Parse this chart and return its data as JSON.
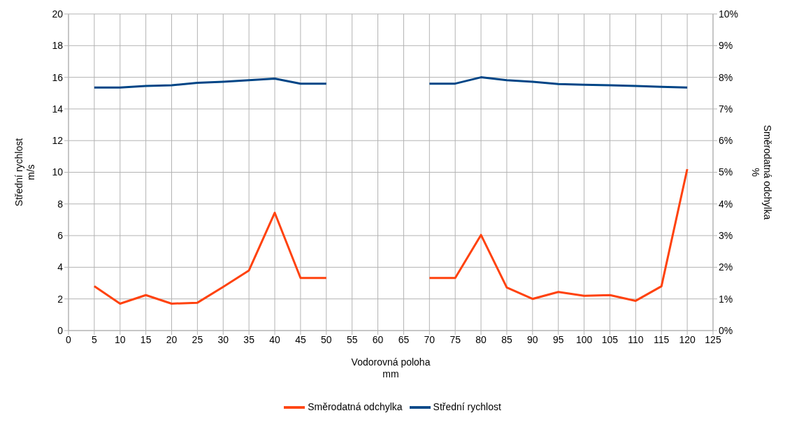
{
  "chart_data": {
    "type": "line",
    "xlabel": "Vodorovná poloha\nmm",
    "ylabel": "Střední rychlost\nm/s",
    "y2label": "Směrodatná odchylka\n%",
    "x": [
      5,
      10,
      15,
      20,
      25,
      30,
      35,
      40,
      45,
      50,
      55,
      60,
      65,
      70,
      75,
      80,
      85,
      90,
      95,
      100,
      105,
      110,
      115,
      120
    ],
    "series": [
      {
        "name": "Střední rychlost",
        "color": "#004586",
        "values": [
          15.35,
          15.35,
          15.45,
          15.5,
          15.65,
          15.72,
          15.82,
          15.92,
          15.6,
          15.6,
          null,
          null,
          null,
          15.6,
          15.6,
          16.0,
          15.82,
          15.72,
          15.57,
          15.53,
          15.5,
          15.45,
          15.4,
          15.35
        ]
      },
      {
        "name": "Směrodatná odchylka",
        "color": "#ff420e",
        "axis": "y2",
        "values": [
          1.4,
          0.85,
          1.12,
          0.85,
          0.88,
          1.38,
          1.9,
          3.72,
          1.66,
          1.66,
          null,
          null,
          null,
          1.66,
          1.66,
          3.02,
          1.36,
          1.0,
          1.22,
          1.1,
          1.12,
          0.94,
          1.4,
          5.1
        ]
      }
    ],
    "xlim": [
      0,
      125
    ],
    "xticks": [
      0,
      5,
      10,
      15,
      20,
      25,
      30,
      35,
      40,
      45,
      50,
      55,
      60,
      65,
      70,
      75,
      80,
      85,
      90,
      95,
      100,
      105,
      110,
      115,
      120,
      125
    ],
    "ylim": [
      0,
      20
    ],
    "yticks": [
      0,
      2,
      4,
      6,
      8,
      10,
      12,
      14,
      16,
      18,
      20
    ],
    "y2lim": [
      0,
      10
    ],
    "y2ticks": [
      {
        "value": 0,
        "label": "0%"
      },
      {
        "value": 1,
        "label": "1%"
      },
      {
        "value": 2,
        "label": "2%"
      },
      {
        "value": 3,
        "label": "3%"
      },
      {
        "value": 4,
        "label": "4%"
      },
      {
        "value": 5,
        "label": "5%"
      },
      {
        "value": 6,
        "label": "6%"
      },
      {
        "value": 7,
        "label": "7%"
      },
      {
        "value": 8,
        "label": "8%"
      },
      {
        "value": 9,
        "label": "9%"
      },
      {
        "value": 10,
        "label": "10%"
      }
    ],
    "grid": true,
    "legend": "bottom",
    "marker": "none",
    "line_style": "solid"
  }
}
